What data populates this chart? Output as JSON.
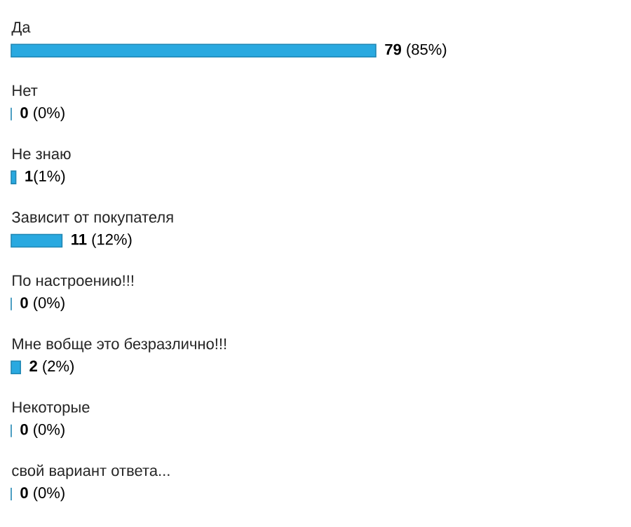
{
  "chart_data": {
    "type": "bar",
    "orientation": "horizontal",
    "categories": [
      "Да",
      "Нет",
      "Не знаю",
      "Зависит от покупателя",
      "По настроению!!!",
      "Мне вобще это безразлично!!!",
      "Некоторые",
      "свой вариант ответа..."
    ],
    "values": [
      79,
      0,
      1,
      11,
      0,
      2,
      0,
      0
    ],
    "value_labels": [
      "**79** (85%)",
      "**0** (0%)",
      "**1**(1%)",
      "**11** (12%)",
      "**0** (0%)",
      "**2** (2%)",
      "**0** (0%)",
      "**0** (0%)"
    ],
    "color": "#29a9e0"
  }
}
